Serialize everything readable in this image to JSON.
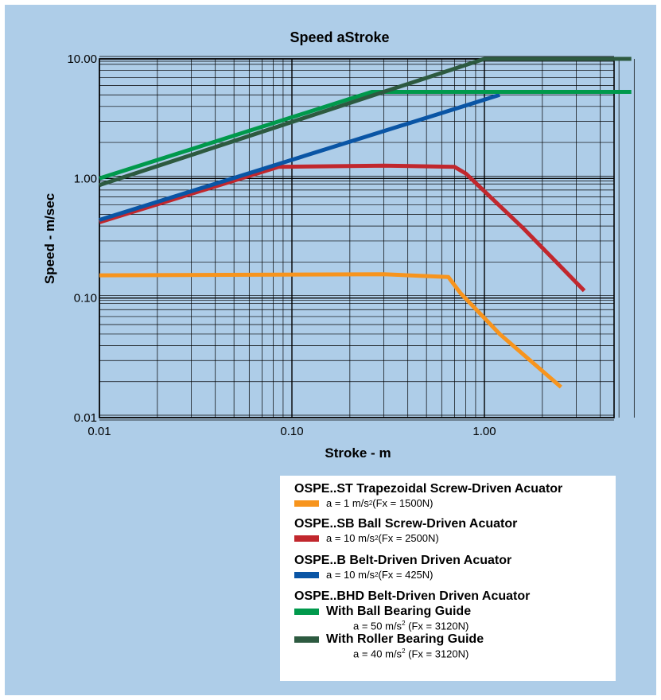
{
  "chart_data": {
    "type": "line",
    "title": "Speed aStroke",
    "xlabel": "Stroke - m",
    "ylabel": "Speed - m/sec",
    "x_scale": "log",
    "y_scale": "log",
    "xlim": [
      0.01,
      6.0
    ],
    "ylim": [
      0.01,
      10.0
    ],
    "x_ticks": [
      "0.01",
      "0.10",
      "1.00"
    ],
    "y_ticks": [
      "10.00",
      "1.00",
      "0.10",
      "0.01"
    ],
    "grid": true,
    "legend_position": "bottom-right",
    "series": [
      {
        "key": "st",
        "color": "#f7941d",
        "points": [
          [
            0.01,
            0.155
          ],
          [
            0.3,
            0.158
          ],
          [
            0.65,
            0.15
          ],
          [
            0.75,
            0.11
          ],
          [
            1.2,
            0.05
          ],
          [
            2.5,
            0.018
          ]
        ]
      },
      {
        "key": "sb",
        "color": "#c1272d",
        "points": [
          [
            0.01,
            0.43
          ],
          [
            0.085,
            1.25
          ],
          [
            0.3,
            1.28
          ],
          [
            0.7,
            1.25
          ],
          [
            0.8,
            1.1
          ],
          [
            1.6,
            0.38
          ],
          [
            3.3,
            0.115
          ]
        ]
      },
      {
        "key": "b",
        "color": "#0a55a5",
        "points": [
          [
            0.01,
            0.45
          ],
          [
            1.2,
            5.0
          ]
        ]
      },
      {
        "key": "bhd_ball",
        "color": "#00994c",
        "points": [
          [
            0.01,
            1.0
          ],
          [
            0.26,
            5.3
          ],
          [
            5.8,
            5.3
          ]
        ]
      },
      {
        "key": "bhd_roller",
        "color": "#2d5a40",
        "points": [
          [
            0.01,
            0.88
          ],
          [
            1.0,
            10.0
          ],
          [
            5.8,
            10.0
          ]
        ]
      }
    ]
  },
  "legend": {
    "st_title": "OSPE..ST Trapezoidal Screw-Driven Acuator",
    "st_a": "a = 1 m/s",
    "st_sup": "2",
    "st_fx": " (Fx = 1500N)",
    "sb_title": "OSPE..SB Ball Screw-Driven Acuator",
    "sb_a": "a = 10 m/s",
    "sb_sup": "2",
    "sb_fx": " (Fx = 2500N)",
    "b_title": "OSPE..B Belt-Driven Driven Acuator",
    "b_a": "a = 10 m/s",
    "b_sup": "2",
    "b_fx": " (Fx = 425N)",
    "bhd_title": "OSPE..BHD Belt-Driven Driven Acuator",
    "ball_label": "With Ball Bearing Guide",
    "ball_a": "a = 50 m/s",
    "ball_sup": "2",
    "ball_fx": " (Fx = 3120N)",
    "roller_label": "With Roller Bearing Guide",
    "roller_a": "a = 40 m/s",
    "roller_sup": "2",
    "roller_fx": " (Fx = 3120N)"
  }
}
